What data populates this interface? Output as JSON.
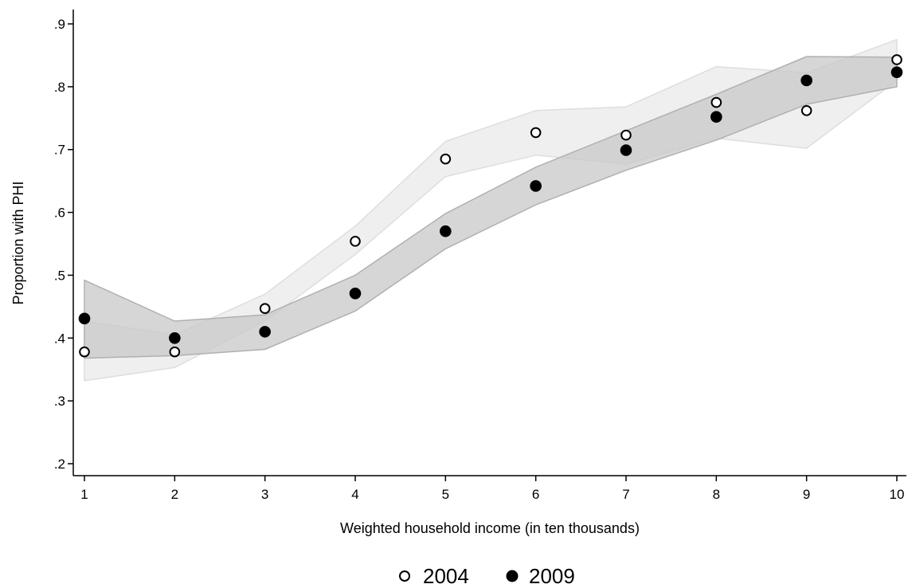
{
  "chart_data": {
    "type": "scatter",
    "title": "",
    "xlabel": "Weighted household income (in ten thousands)",
    "ylabel": "Proportion with PHI",
    "xlim": [
      1,
      10
    ],
    "ylim": [
      0.2,
      0.9
    ],
    "x_ticks": [
      1,
      2,
      3,
      4,
      5,
      6,
      7,
      8,
      9,
      10
    ],
    "x_tick_labels": [
      "1",
      "2",
      "3",
      "4",
      "5",
      "6",
      "7",
      "8",
      "9",
      "10"
    ],
    "y_ticks": [
      0.2,
      0.3,
      0.4,
      0.5,
      0.6,
      0.7,
      0.8,
      0.9
    ],
    "y_tick_labels": [
      ".2",
      ".3",
      ".4",
      ".5",
      ".6",
      ".7",
      ".8",
      ".9"
    ],
    "grid": false,
    "legend_position": "bottom-center",
    "x": [
      1,
      2,
      3,
      4,
      5,
      6,
      7,
      8,
      9,
      10
    ],
    "series": [
      {
        "name": "2004",
        "marker": "hollow-circle",
        "values": [
          0.378,
          0.378,
          0.447,
          0.554,
          0.685,
          0.727,
          0.723,
          0.775,
          0.762,
          0.843
        ],
        "ci_lower": [
          0.332,
          0.353,
          0.427,
          0.533,
          0.657,
          0.691,
          0.677,
          0.718,
          0.702,
          0.81
        ],
        "ci_upper": [
          0.427,
          0.405,
          0.47,
          0.578,
          0.713,
          0.762,
          0.768,
          0.832,
          0.822,
          0.875
        ],
        "band_color": "#ececec"
      },
      {
        "name": "2009",
        "marker": "filled-circle",
        "values": [
          0.431,
          0.4,
          0.41,
          0.471,
          0.57,
          0.642,
          0.699,
          0.752,
          0.81,
          0.823
        ],
        "ci_lower": [
          0.368,
          0.372,
          0.382,
          0.443,
          0.542,
          0.612,
          0.667,
          0.715,
          0.772,
          0.8
        ],
        "ci_upper": [
          0.492,
          0.427,
          0.437,
          0.5,
          0.598,
          0.672,
          0.73,
          0.788,
          0.848,
          0.847
        ],
        "band_color": "#c8c8c8"
      }
    ]
  }
}
